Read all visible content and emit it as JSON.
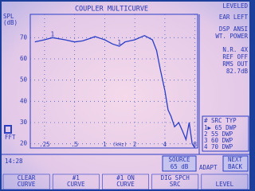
{
  "chart_data": {
    "type": "line",
    "title": "COUPLER MULTICURVE",
    "ylabel": [
      "SPL",
      "(dB)"
    ],
    "xlabel": "(kHz)",
    "x": [
      0.2,
      0.25,
      0.3,
      0.4,
      0.5,
      0.6,
      0.7,
      0.8,
      1,
      1.2,
      1.4,
      1.6,
      2,
      2.5,
      3,
      3.3,
      3.6,
      4,
      4.3,
      4.6,
      5,
      5.5,
      6,
      6.5,
      7,
      7.5,
      8
    ],
    "series": [
      {
        "name": "1",
        "color": "#2a3fc8",
        "values": [
          68,
          69,
          70,
          69,
          68,
          68.5,
          69.5,
          70.5,
          69,
          67,
          66,
          68,
          69,
          71,
          69,
          64,
          55,
          45,
          36,
          33,
          28,
          30,
          26,
          22,
          30,
          20,
          18
        ]
      }
    ],
    "xlim": [
      0.18,
      8.5
    ],
    "ylim": [
      18,
      81
    ],
    "log_x": true,
    "grid": true,
    "xticks": [
      {
        "value": 0.25,
        "label": ".25"
      },
      {
        "value": 0.5,
        "label": ".5"
      },
      1,
      2,
      4,
      8
    ],
    "yticks": [
      20,
      30,
      40,
      50,
      60,
      70
    ]
  },
  "screen": {
    "right": [
      "LEVELED",
      "EAR  LEFT",
      "DSP  ANSI",
      "WT. POWER",
      "N.R.  4X",
      "REF OFF",
      "RMS OUT",
      "82.7dB"
    ],
    "fft": "FFT",
    "table": {
      "header": "# SRC TYP",
      "rows": [
        "1▶ 65 DWP",
        "2  55 DWP",
        "3  60 DWP",
        "4  70 DWP"
      ]
    },
    "time": "14:28",
    "source": [
      "SOURCE",
      "65 dB"
    ],
    "adapt": "ADAPT",
    "next": [
      "NEXT",
      "BACK"
    ],
    "softkeys": [
      [
        "CLEAR",
        "CURVE"
      ],
      [
        "#1",
        "CURVE"
      ],
      [
        "#1 ON",
        "CURVE"
      ],
      [
        "DIG SPCH",
        "SRC"
      ],
      [
        "",
        "LEVEL"
      ]
    ]
  }
}
